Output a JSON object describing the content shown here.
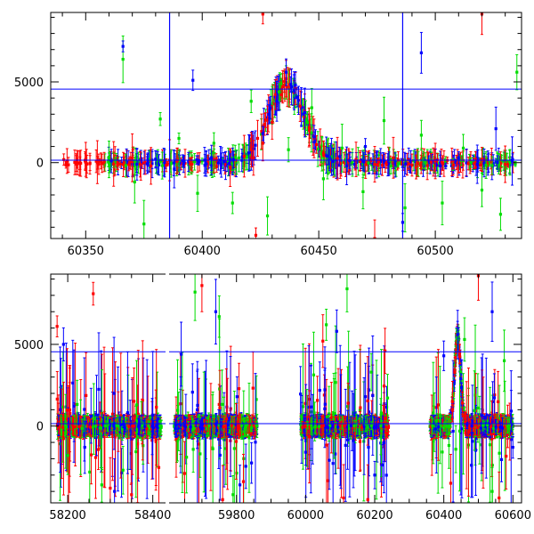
{
  "chart_data": [
    {
      "type": "scatter",
      "panel": "top",
      "xlim": [
        60335,
        60537
      ],
      "ylim": [
        -4700,
        9300
      ],
      "xticks_major": [
        60350,
        60400,
        60450,
        60500
      ],
      "xtick_labels": [
        "60350",
        "60400",
        "60450",
        "60500"
      ],
      "xticks_minor_step": 10,
      "yticks_major": [
        0,
        5000
      ],
      "ytick_labels": [
        "0",
        "5000"
      ],
      "yticks_minor_step": 1000,
      "hlines": [
        4550,
        150
      ],
      "vlines": [
        60386,
        60486
      ],
      "series": [
        {
          "color": "#ff0000",
          "points": [
            [
              60342,
              100
            ],
            [
              60346,
              -50
            ],
            [
              60350,
              200
            ],
            [
              60355,
              30
            ],
            [
              60362,
              -80
            ],
            [
              60370,
              300
            ],
            [
              60378,
              -200
            ],
            [
              60386,
              150
            ],
            [
              60395,
              -100
            ],
            [
              60405,
              200
            ],
            [
              60412,
              -300
            ],
            [
              60418,
              400
            ],
            [
              60422,
              300
            ],
            [
              60426,
              1200
            ],
            [
              60430,
              2500
            ],
            [
              60434,
              4200
            ],
            [
              60436,
              5200
            ],
            [
              60440,
              4600
            ],
            [
              60444,
              3200
            ],
            [
              60448,
              1500
            ],
            [
              60452,
              600
            ],
            [
              60458,
              250
            ],
            [
              60466,
              200
            ],
            [
              60474,
              -100
            ],
            [
              60482,
              300
            ],
            [
              60490,
              -150
            ],
            [
              60500,
              100
            ],
            [
              60510,
              -50
            ],
            [
              60520,
              200
            ],
            [
              60530,
              -100
            ],
            [
              60423,
              -4500
            ],
            [
              60426,
              9200
            ],
            [
              60442,
              3500
            ],
            [
              60474,
              -4700
            ],
            [
              60520,
              9200
            ]
          ]
        },
        {
          "color": "#00dd00",
          "points": [
            [
              60360,
              200
            ],
            [
              60366,
              6400
            ],
            [
              60371,
              -1200
            ],
            [
              60375,
              -3800
            ],
            [
              60382,
              2700
            ],
            [
              60390,
              1500
            ],
            [
              60398,
              -1900
            ],
            [
              60405,
              1200
            ],
            [
              60413,
              -2500
            ],
            [
              60421,
              3800
            ],
            [
              60428,
              -3300
            ],
            [
              60437,
              800
            ],
            [
              60447,
              3400
            ],
            [
              60452,
              -1000
            ],
            [
              60460,
              900
            ],
            [
              60469,
              -1800
            ],
            [
              60478,
              2600
            ],
            [
              60487,
              -2800
            ],
            [
              60494,
              1700
            ],
            [
              60503,
              -2500
            ],
            [
              60512,
              900
            ],
            [
              60520,
              -1700
            ],
            [
              60528,
              -3200
            ],
            [
              60535,
              5600
            ]
          ]
        },
        {
          "color": "#0000ff",
          "points": [
            [
              60361,
              100
            ],
            [
              60366,
              7200
            ],
            [
              60372,
              -100
            ],
            [
              60380,
              200
            ],
            [
              60388,
              -400
            ],
            [
              60396,
              5100
            ],
            [
              60404,
              300
            ],
            [
              60412,
              200
            ],
            [
              60420,
              600
            ],
            [
              60426,
              1800
            ],
            [
              60432,
              3800
            ],
            [
              60436,
              5600
            ],
            [
              60440,
              4800
            ],
            [
              60444,
              3100
            ],
            [
              60448,
              1600
            ],
            [
              60454,
              400
            ],
            [
              60462,
              -200
            ],
            [
              60470,
              1000
            ],
            [
              60478,
              100
            ],
            [
              60486,
              -3700
            ],
            [
              60494,
              6800
            ],
            [
              60502,
              -200
            ],
            [
              60510,
              300
            ],
            [
              60518,
              -100
            ],
            [
              60526,
              2100
            ],
            [
              60533,
              100
            ]
          ]
        }
      ]
    },
    {
      "type": "scatter",
      "panel": "bottom",
      "broken_axis": true,
      "segments": [
        {
          "xlim": [
            58160,
            58430
          ]
        },
        {
          "xlim": [
            59605,
            60625
          ]
        }
      ],
      "ylim": [
        -4700,
        9300
      ],
      "xticks_major": [
        58200,
        58400,
        59800,
        60000,
        60200,
        60400,
        60600
      ],
      "xtick_labels": [
        "58200",
        "58400",
        "59800",
        "60000",
        "60200",
        "60400",
        "60600"
      ],
      "xticks_minor_step": 50,
      "yticks_major": [
        0,
        5000
      ],
      "ytick_labels": [
        "0",
        "5000"
      ],
      "yticks_minor_step": 1000,
      "hlines": [
        4550,
        150
      ],
      "clusters": [
        {
          "x": [
            58175,
            58420
          ],
          "spread": 3200
        },
        {
          "x": [
            59620,
            59860
          ],
          "spread": 3600
        },
        {
          "x": [
            59985,
            60240
          ],
          "spread": 3800
        },
        {
          "x": [
            60360,
            60600
          ],
          "spread": 3000
        }
      ],
      "flare": {
        "center": 60440,
        "peak": 5600,
        "width": 12
      },
      "series": [
        {
          "color": "#ff0000",
          "points": [
            [
              58175,
              6100
            ],
            [
              58260,
              8100
            ],
            [
              58300,
              -3800
            ],
            [
              58350,
              -4200
            ],
            [
              59650,
              -2900
            ],
            [
              59700,
              8600
            ],
            [
              59760,
              -4500
            ],
            [
              59820,
              -3400
            ],
            [
              60050,
              5200
            ],
            [
              60110,
              -4400
            ],
            [
              60180,
              -4500
            ],
            [
              60230,
              4600
            ],
            [
              60420,
              -3500
            ],
            [
              60500,
              9200
            ],
            [
              60560,
              -4400
            ]
          ]
        },
        {
          "color": "#00dd00",
          "points": [
            [
              58200,
              -1800
            ],
            [
              58280,
              -3600
            ],
            [
              58330,
              -2700
            ],
            [
              59680,
              8200
            ],
            [
              59750,
              6700
            ],
            [
              59790,
              -4200
            ],
            [
              60060,
              6200
            ],
            [
              60120,
              8400
            ],
            [
              60190,
              3300
            ],
            [
              60460,
              5300
            ],
            [
              60540,
              -4000
            ],
            [
              60575,
              4000
            ]
          ]
        },
        {
          "color": "#0000ff",
          "points": [
            [
              58190,
              5000
            ],
            [
              58240,
              -1300
            ],
            [
              58310,
              -4000
            ],
            [
              59640,
              4400
            ],
            [
              59740,
              7000
            ],
            [
              59810,
              -3600
            ],
            [
              60000,
              -1600
            ],
            [
              60090,
              5800
            ],
            [
              60200,
              -3000
            ],
            [
              60400,
              4300
            ],
            [
              60440,
              5600
            ],
            [
              60480,
              -2400
            ],
            [
              60540,
              7000
            ],
            [
              60600,
              -1300
            ]
          ]
        }
      ]
    }
  ]
}
